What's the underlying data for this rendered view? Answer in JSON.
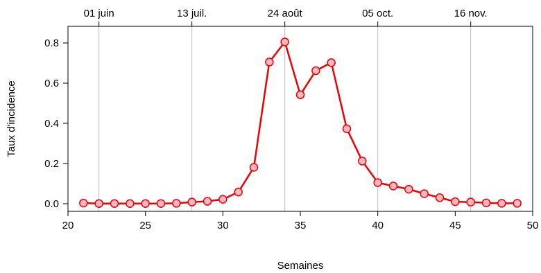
{
  "chart_data": {
    "type": "line",
    "xlabel": "Semaines",
    "ylabel": "Taux d'incidence",
    "xlim": [
      20,
      50
    ],
    "ylim": [
      0,
      0.8
    ],
    "x_ticks": [
      20,
      25,
      30,
      35,
      40,
      45,
      50
    ],
    "y_ticks": [
      0.0,
      0.2,
      0.4,
      0.6,
      0.8
    ],
    "y_tick_labels": [
      "0.0",
      "0.2",
      "0.4",
      "0.6",
      "0.8"
    ],
    "top_axis": {
      "ticks": [
        {
          "x": 22,
          "label": "01 juin"
        },
        {
          "x": 28,
          "label": "13 juil."
        },
        {
          "x": 34,
          "label": "24 août"
        },
        {
          "x": 40,
          "label": "05 oct."
        },
        {
          "x": 46,
          "label": "16 nov."
        }
      ]
    },
    "grid": "vertical lines at top-axis ticks",
    "series": [
      {
        "color": "#ee0000",
        "marker_fill": "#ffb6c1",
        "x": [
          21,
          22,
          23,
          24,
          25,
          26,
          27,
          28,
          29,
          30,
          31,
          32,
          33,
          34,
          35,
          36,
          37,
          38,
          39,
          40,
          41,
          42,
          43,
          44,
          45,
          46,
          47,
          48,
          49
        ],
        "y": [
          0.003,
          0.001,
          0.001,
          0.001,
          0.001,
          0.001,
          0.002,
          0.008,
          0.012,
          0.022,
          0.058,
          0.181,
          0.705,
          0.805,
          0.542,
          0.662,
          0.702,
          0.373,
          0.212,
          0.105,
          0.088,
          0.072,
          0.05,
          0.03,
          0.01,
          0.008,
          0.004,
          0.002,
          0.002
        ]
      }
    ]
  }
}
